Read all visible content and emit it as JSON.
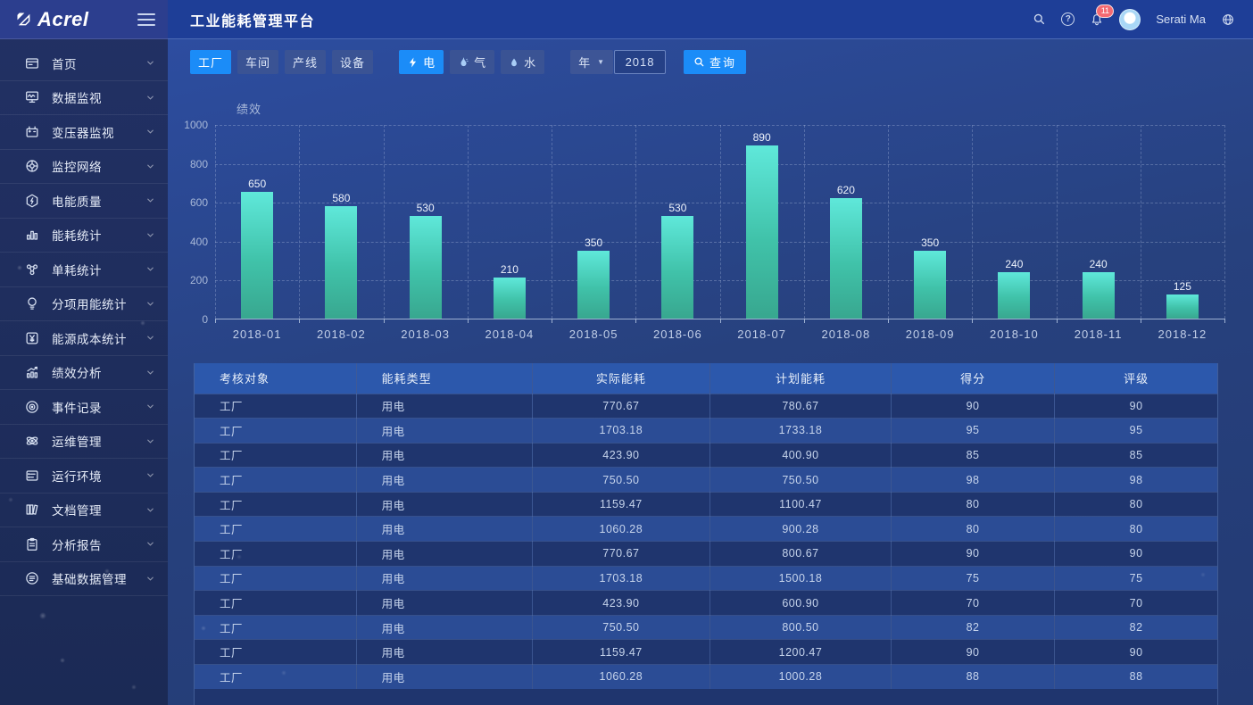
{
  "brand": {
    "logo_text": "Acrel"
  },
  "header": {
    "title": "工业能耗管理平台",
    "user_name": "Serati Ma",
    "notification_count": "11"
  },
  "sidebar": {
    "items": [
      {
        "icon": "home",
        "label": "首页"
      },
      {
        "icon": "data-monitor",
        "label": "数据监视"
      },
      {
        "icon": "transformer",
        "label": "变压器监视"
      },
      {
        "icon": "network",
        "label": "监控网络"
      },
      {
        "icon": "power-quality",
        "label": "电能质量"
      },
      {
        "icon": "energy-stats",
        "label": "能耗统计"
      },
      {
        "icon": "unit-consumption",
        "label": "单耗统计"
      },
      {
        "icon": "subitem-energy",
        "label": "分项用能统计"
      },
      {
        "icon": "energy-cost",
        "label": "能源成本统计"
      },
      {
        "icon": "performance",
        "label": "绩效分析"
      },
      {
        "icon": "event-log",
        "label": "事件记录"
      },
      {
        "icon": "ops",
        "label": "运维管理"
      },
      {
        "icon": "environment",
        "label": "运行环境"
      },
      {
        "icon": "documents",
        "label": "文档管理"
      },
      {
        "icon": "report",
        "label": "分析报告"
      },
      {
        "icon": "base-data",
        "label": "基础数据管理"
      }
    ]
  },
  "filters": {
    "level_tabs": [
      {
        "key": "factory",
        "label": "工厂",
        "active": true
      },
      {
        "key": "workshop",
        "label": "车间",
        "active": false
      },
      {
        "key": "line",
        "label": "产线",
        "active": false
      },
      {
        "key": "device",
        "label": "设备",
        "active": false
      }
    ],
    "energy_tabs": [
      {
        "key": "electricity",
        "icon": "bolt",
        "label": "电",
        "active": true
      },
      {
        "key": "gas",
        "icon": "flame",
        "label": "气",
        "active": false
      },
      {
        "key": "water",
        "icon": "drop",
        "label": "水",
        "active": false
      }
    ],
    "period_select": "年",
    "year_value": "2018",
    "query_label": "查询"
  },
  "chart_data": {
    "type": "bar",
    "title": "绩效",
    "categories": [
      "2018-01",
      "2018-02",
      "2018-03",
      "2018-04",
      "2018-05",
      "2018-06",
      "2018-07",
      "2018-08",
      "2018-09",
      "2018-10",
      "2018-11",
      "2018-12"
    ],
    "values": [
      650,
      580,
      530,
      210,
      350,
      530,
      890,
      620,
      350,
      240,
      240,
      125
    ],
    "xlabel": "",
    "ylabel": "绩效",
    "ylim": [
      0,
      1000
    ],
    "ytick_interval": 200,
    "grid": true,
    "legend_position": "none"
  },
  "table": {
    "columns": [
      "考核对象",
      "能耗类型",
      "实际能耗",
      "计划能耗",
      "得分",
      "评级"
    ],
    "rows": [
      [
        "工厂",
        "用电",
        "770.67",
        "780.67",
        "90",
        "90"
      ],
      [
        "工厂",
        "用电",
        "1703.18",
        "1733.18",
        "95",
        "95"
      ],
      [
        "工厂",
        "用电",
        "423.90",
        "400.90",
        "85",
        "85"
      ],
      [
        "工厂",
        "用电",
        "750.50",
        "750.50",
        "98",
        "98"
      ],
      [
        "工厂",
        "用电",
        "1159.47",
        "1100.47",
        "80",
        "80"
      ],
      [
        "工厂",
        "用电",
        "1060.28",
        "900.28",
        "80",
        "80"
      ],
      [
        "工厂",
        "用电",
        "770.67",
        "800.67",
        "90",
        "90"
      ],
      [
        "工厂",
        "用电",
        "1703.18",
        "1500.18",
        "75",
        "75"
      ],
      [
        "工厂",
        "用电",
        "423.90",
        "600.90",
        "70",
        "70"
      ],
      [
        "工厂",
        "用电",
        "750.50",
        "800.50",
        "82",
        "82"
      ],
      [
        "工厂",
        "用电",
        "1159.47",
        "1200.47",
        "90",
        "90"
      ],
      [
        "工厂",
        "用电",
        "1060.28",
        "1000.28",
        "88",
        "88"
      ]
    ]
  },
  "colors": {
    "accent": "#1b8cf8",
    "bar_top": "#5fe8da",
    "bar_bottom": "#38a78f",
    "badge": "#f56a72",
    "table_header": "#2c58ac",
    "row_dark": "#1f356e",
    "row_light": "#2b4c95"
  }
}
